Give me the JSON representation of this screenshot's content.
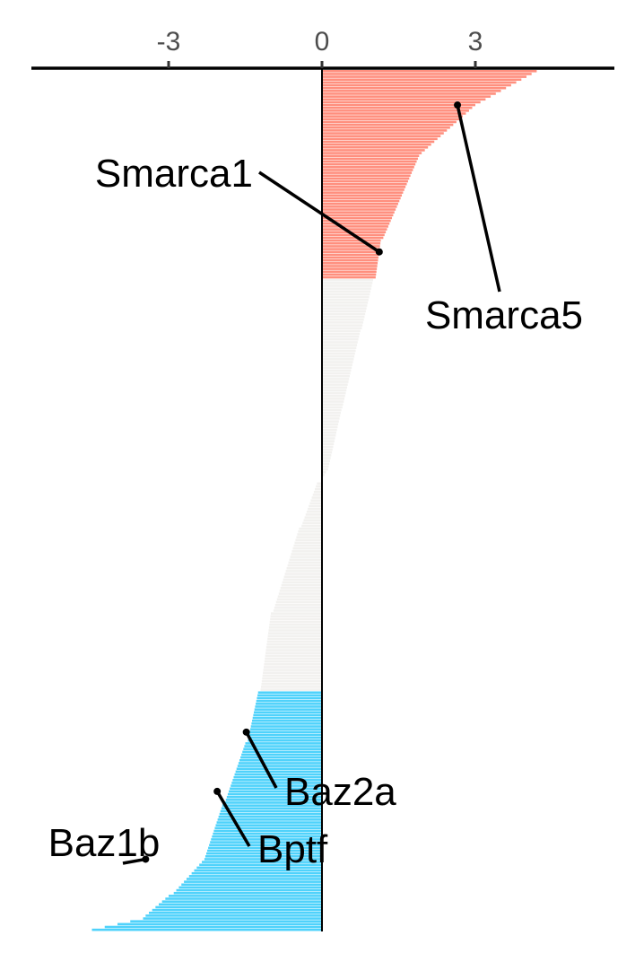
{
  "chart_data": {
    "type": "bar",
    "orientation": "horizontal",
    "sorted": "descending",
    "x_ticks": [
      -3,
      0,
      3
    ],
    "x_tick_labels": [
      "-3",
      "0",
      "3"
    ],
    "xlim": [
      -5.7,
      5.7
    ],
    "colors": {
      "up": "#FF8F7E",
      "mid": "#F2F1EF",
      "down": "#4FD2FB"
    },
    "segments": [
      {
        "group": "up",
        "count": 12,
        "start": 4.2,
        "end": 3.1
      },
      {
        "group": "up",
        "count": 18,
        "start": 3.0,
        "end": 1.95
      },
      {
        "group": "up",
        "count": 30,
        "start": 1.9,
        "end": 1.2
      },
      {
        "group": "up",
        "count": 14,
        "start": 1.15,
        "end": 1.05
      },
      {
        "group": "mid",
        "count": 18,
        "start": 1.0,
        "end": 0.78
      },
      {
        "group": "mid",
        "count": 28,
        "start": 0.75,
        "end": 0.4
      },
      {
        "group": "mid",
        "count": 22,
        "start": 0.38,
        "end": 0.12
      },
      {
        "group": "mid",
        "count": 4,
        "start": 0.08,
        "end": -0.02
      },
      {
        "group": "mid",
        "count": 16,
        "start": -0.1,
        "end": -0.4
      },
      {
        "group": "mid",
        "count": 30,
        "start": -0.45,
        "end": -0.95
      },
      {
        "group": "mid",
        "count": 28,
        "start": -1.0,
        "end": -1.2
      },
      {
        "group": "down",
        "count": 18,
        "start": -1.25,
        "end": -1.45
      },
      {
        "group": "down",
        "count": 22,
        "start": -1.5,
        "end": -1.9
      },
      {
        "group": "down",
        "count": 20,
        "start": -1.95,
        "end": -2.3
      },
      {
        "group": "down",
        "count": 12,
        "start": -2.35,
        "end": -2.9
      },
      {
        "group": "down",
        "count": 8,
        "start": -3.0,
        "end": -3.45
      },
      {
        "group": "down",
        "count": 5,
        "start": -3.5,
        "end": -4.5
      }
    ],
    "labels": [
      {
        "name": "Smarca5",
        "text": "Smarca5",
        "rank": 12,
        "value": 2.65
      },
      {
        "name": "Smarca1",
        "text": "Smarca1",
        "rank": 64,
        "value": 1.12
      },
      {
        "name": "Baz2a",
        "text": "Baz2a",
        "rank": 234,
        "value": -1.48
      },
      {
        "name": "Bptf",
        "text": "Bptf",
        "rank": 255,
        "value": -2.05
      },
      {
        "name": "Baz1b",
        "text": "Baz1b",
        "rank": 279,
        "value": -3.45
      }
    ]
  }
}
